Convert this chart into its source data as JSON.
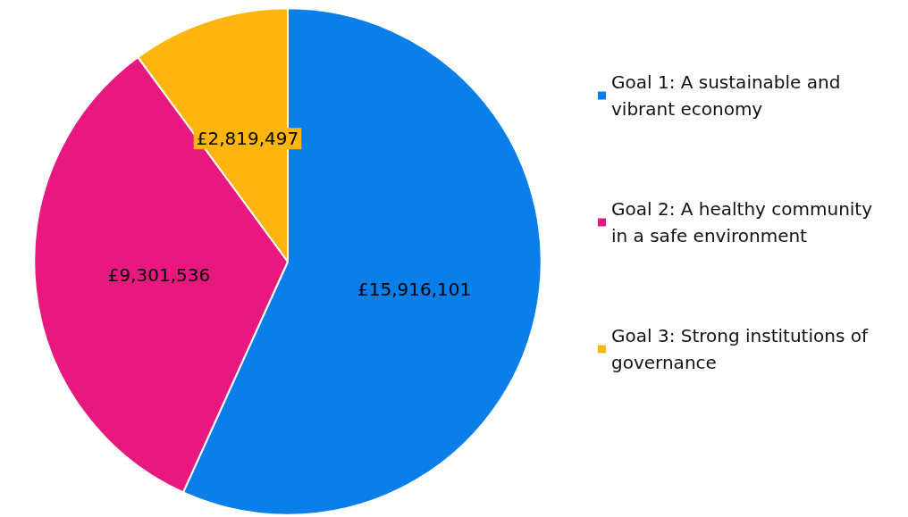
{
  "chart_data": {
    "type": "pie",
    "categories": [
      "Goal 1: A sustainable and vibrant economy",
      "Goal 2: A healthy community in a safe environment",
      "Goal 3: Strong institutions of governance"
    ],
    "values": [
      15916101,
      9301536,
      2819497
    ],
    "value_labels": [
      "£15,916,101",
      "£9,301,536",
      "£2,819,497"
    ],
    "colors": [
      "#0a7fe9",
      "#e8197e",
      "#ffb50f"
    ],
    "legend": "right"
  }
}
